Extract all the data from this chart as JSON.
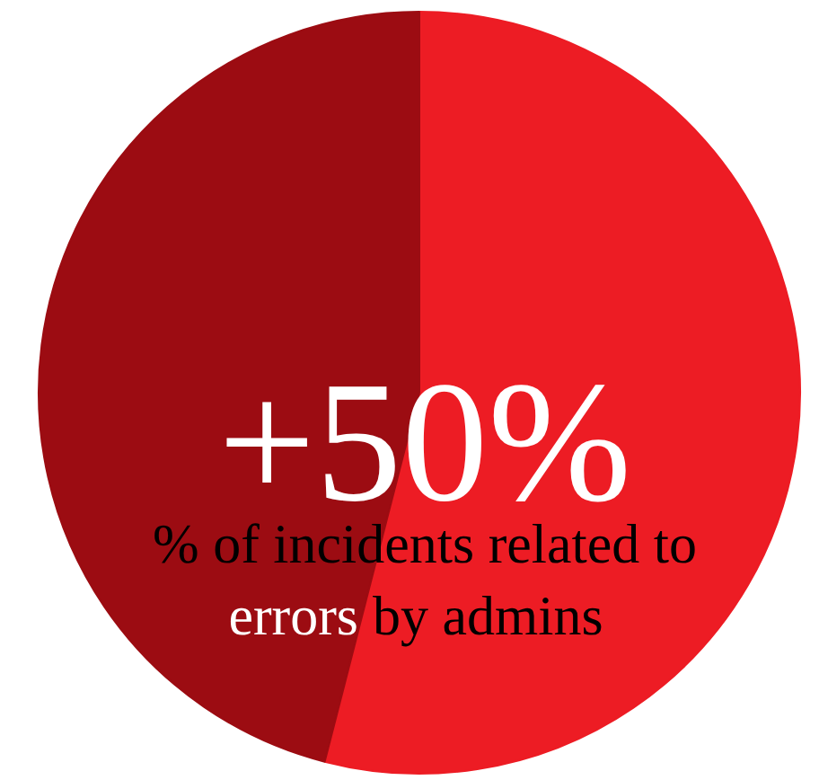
{
  "chart_data": {
    "type": "pie",
    "categories": [
      null,
      null
    ],
    "values": [
      54,
      46
    ],
    "colors": [
      "#ed1c24",
      "#9c0c12"
    ],
    "annotations": [
      "+50%",
      "% of incidents related to",
      "errors",
      "by admins"
    ]
  }
}
